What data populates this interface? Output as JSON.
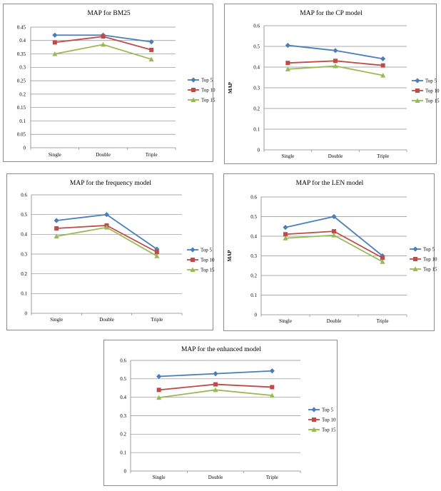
{
  "chart_data": [
    {
      "type": "line",
      "title": "MAP for BM25",
      "ylabel": "",
      "categories": [
        "Single",
        "Double",
        "Triple"
      ],
      "ylim": [
        0,
        0.45
      ],
      "yticks": [
        "0",
        "0.05",
        "0.1",
        "0.15",
        "0.2",
        "0.25",
        "0.3",
        "0.35",
        "0.4",
        "0.45"
      ],
      "series": [
        {
          "name": "Top 5",
          "values": [
            0.42,
            0.42,
            0.395
          ],
          "color": "#4a7ebb",
          "marker": "diamond"
        },
        {
          "name": "Top 10",
          "values": [
            0.393,
            0.415,
            0.365
          ],
          "color": "#be4b48",
          "marker": "square"
        },
        {
          "name": "Top 15",
          "values": [
            0.35,
            0.385,
            0.33
          ],
          "color": "#98b954",
          "marker": "triangle"
        }
      ]
    },
    {
      "type": "line",
      "title": "MAP for the CP model",
      "ylabel": "MAP",
      "categories": [
        "Single",
        "Double",
        "Triple"
      ],
      "ylim": [
        0,
        0.6
      ],
      "yticks": [
        "0",
        "0.1",
        "0.2",
        "0.3",
        "0.4",
        "0.5",
        "0.6"
      ],
      "series": [
        {
          "name": "Top 5",
          "values": [
            0.505,
            0.48,
            0.44
          ],
          "color": "#4a7ebb",
          "marker": "diamond"
        },
        {
          "name": "Top 10",
          "values": [
            0.42,
            0.43,
            0.408
          ],
          "color": "#be4b48",
          "marker": "square"
        },
        {
          "name": "Top 15",
          "values": [
            0.39,
            0.405,
            0.36
          ],
          "color": "#98b954",
          "marker": "triangle"
        }
      ]
    },
    {
      "type": "line",
      "title": "MAP for the frequency model",
      "ylabel": "",
      "categories": [
        "Single",
        "Double",
        "Triple"
      ],
      "ylim": [
        0,
        0.6
      ],
      "yticks": [
        "0",
        "0.1",
        "0.2",
        "0.3",
        "0.4",
        "0.5",
        "0.6"
      ],
      "series": [
        {
          "name": "Top 5",
          "values": [
            0.47,
            0.5,
            0.325
          ],
          "color": "#4a7ebb",
          "marker": "diamond"
        },
        {
          "name": "Top 10",
          "values": [
            0.43,
            0.445,
            0.31
          ],
          "color": "#be4b48",
          "marker": "square"
        },
        {
          "name": "Top 15",
          "values": [
            0.39,
            0.435,
            0.29
          ],
          "color": "#98b954",
          "marker": "triangle"
        }
      ]
    },
    {
      "type": "line",
      "title": "MAP for the LEN model",
      "ylabel": "MAP",
      "categories": [
        "Single",
        "Double",
        "Triple"
      ],
      "ylim": [
        0,
        0.6
      ],
      "yticks": [
        "0",
        "0.1",
        "0.2",
        "0.3",
        "0.4",
        "0.5",
        "0.6"
      ],
      "series": [
        {
          "name": "Top 5",
          "values": [
            0.445,
            0.5,
            0.3
          ],
          "color": "#4a7ebb",
          "marker": "diamond"
        },
        {
          "name": "Top 10",
          "values": [
            0.41,
            0.425,
            0.29
          ],
          "color": "#be4b48",
          "marker": "square"
        },
        {
          "name": "Top 15",
          "values": [
            0.39,
            0.405,
            0.27
          ],
          "color": "#98b954",
          "marker": "triangle"
        }
      ]
    },
    {
      "type": "line",
      "title": "MAP for the enhanced  model",
      "ylabel": "",
      "categories": [
        "Single",
        "Double",
        "Triple"
      ],
      "ylim": [
        0,
        0.6
      ],
      "yticks": [
        "0",
        "0.1",
        "0.2",
        "0.3",
        "0.4",
        "0.5",
        "0.6"
      ],
      "series": [
        {
          "name": "Top 5",
          "values": [
            0.513,
            0.528,
            0.543
          ],
          "color": "#4a7ebb",
          "marker": "diamond"
        },
        {
          "name": "Top 10",
          "values": [
            0.44,
            0.47,
            0.455
          ],
          "color": "#be4b48",
          "marker": "square"
        },
        {
          "name": "Top 15",
          "values": [
            0.398,
            0.44,
            0.41
          ],
          "color": "#98b954",
          "marker": "triangle"
        }
      ]
    }
  ]
}
